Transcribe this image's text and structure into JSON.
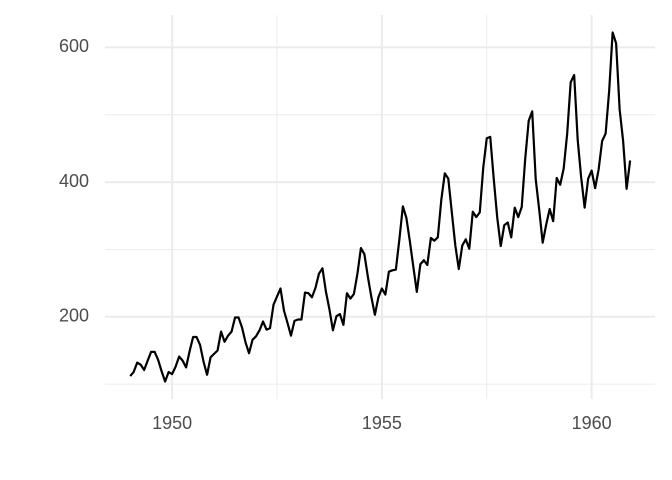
{
  "chart_data": {
    "type": "line",
    "x": [
      1949,
      1949.083,
      1949.167,
      1949.25,
      1949.333,
      1949.417,
      1949.5,
      1949.583,
      1949.667,
      1949.75,
      1949.833,
      1949.917,
      1950,
      1950.083,
      1950.167,
      1950.25,
      1950.333,
      1950.417,
      1950.5,
      1950.583,
      1950.667,
      1950.75,
      1950.833,
      1950.917,
      1951,
      1951.083,
      1951.167,
      1951.25,
      1951.333,
      1951.417,
      1951.5,
      1951.583,
      1951.667,
      1951.75,
      1951.833,
      1951.917,
      1952,
      1952.083,
      1952.167,
      1952.25,
      1952.333,
      1952.417,
      1952.5,
      1952.583,
      1952.667,
      1952.75,
      1952.833,
      1952.917,
      1953,
      1953.083,
      1953.167,
      1953.25,
      1953.333,
      1953.417,
      1953.5,
      1953.583,
      1953.667,
      1953.75,
      1953.833,
      1953.917,
      1954,
      1954.083,
      1954.167,
      1954.25,
      1954.333,
      1954.417,
      1954.5,
      1954.583,
      1954.667,
      1954.75,
      1954.833,
      1954.917,
      1955,
      1955.083,
      1955.167,
      1955.25,
      1955.333,
      1955.417,
      1955.5,
      1955.583,
      1955.667,
      1955.75,
      1955.833,
      1955.917,
      1956,
      1956.083,
      1956.167,
      1956.25,
      1956.333,
      1956.417,
      1956.5,
      1956.583,
      1956.667,
      1956.75,
      1956.833,
      1956.917,
      1957,
      1957.083,
      1957.167,
      1957.25,
      1957.333,
      1957.417,
      1957.5,
      1957.583,
      1957.667,
      1957.75,
      1957.833,
      1957.917,
      1958,
      1958.083,
      1958.167,
      1958.25,
      1958.333,
      1958.417,
      1958.5,
      1958.583,
      1958.667,
      1958.75,
      1958.833,
      1958.917,
      1959,
      1959.083,
      1959.167,
      1959.25,
      1959.333,
      1959.417,
      1959.5,
      1959.583,
      1959.667,
      1959.75,
      1959.833,
      1959.917,
      1960,
      1960.083,
      1960.167,
      1960.25,
      1960.333,
      1960.417,
      1960.5,
      1960.583,
      1960.667,
      1960.75,
      1960.833,
      1960.917
    ],
    "values": [
      112,
      118,
      132,
      129,
      121,
      135,
      148,
      148,
      136,
      119,
      104,
      118,
      115,
      126,
      141,
      135,
      125,
      149,
      170,
      170,
      158,
      133,
      114,
      140,
      145,
      150,
      178,
      163,
      172,
      178,
      199,
      199,
      184,
      162,
      146,
      166,
      171,
      180,
      193,
      181,
      183,
      218,
      230,
      242,
      209,
      191,
      172,
      194,
      196,
      196,
      236,
      235,
      229,
      243,
      264,
      272,
      237,
      211,
      180,
      201,
      204,
      188,
      235,
      227,
      234,
      264,
      302,
      293,
      259,
      229,
      203,
      229,
      242,
      233,
      267,
      269,
      270,
      315,
      364,
      347,
      312,
      274,
      237,
      278,
      284,
      277,
      317,
      313,
      318,
      374,
      413,
      405,
      355,
      306,
      271,
      306,
      315,
      301,
      356,
      348,
      355,
      422,
      465,
      467,
      404,
      347,
      305,
      336,
      340,
      318,
      362,
      348,
      363,
      435,
      491,
      505,
      404,
      359,
      310,
      337,
      360,
      342,
      406,
      396,
      420,
      472,
      548,
      559,
      463,
      407,
      362,
      405,
      417,
      391,
      419,
      461,
      472,
      535,
      622,
      606,
      508,
      461,
      390,
      432
    ],
    "color": "#000000",
    "xlim": [
      1948.4,
      1961.51
    ],
    "xticks": [
      1950,
      1955,
      1960
    ],
    "xminor": [
      1952.5,
      1957.5
    ],
    "ylim": [
      78,
      648
    ],
    "yticks": [
      200,
      400,
      600
    ],
    "yminor": [
      100,
      300,
      500
    ],
    "grid": true
  }
}
